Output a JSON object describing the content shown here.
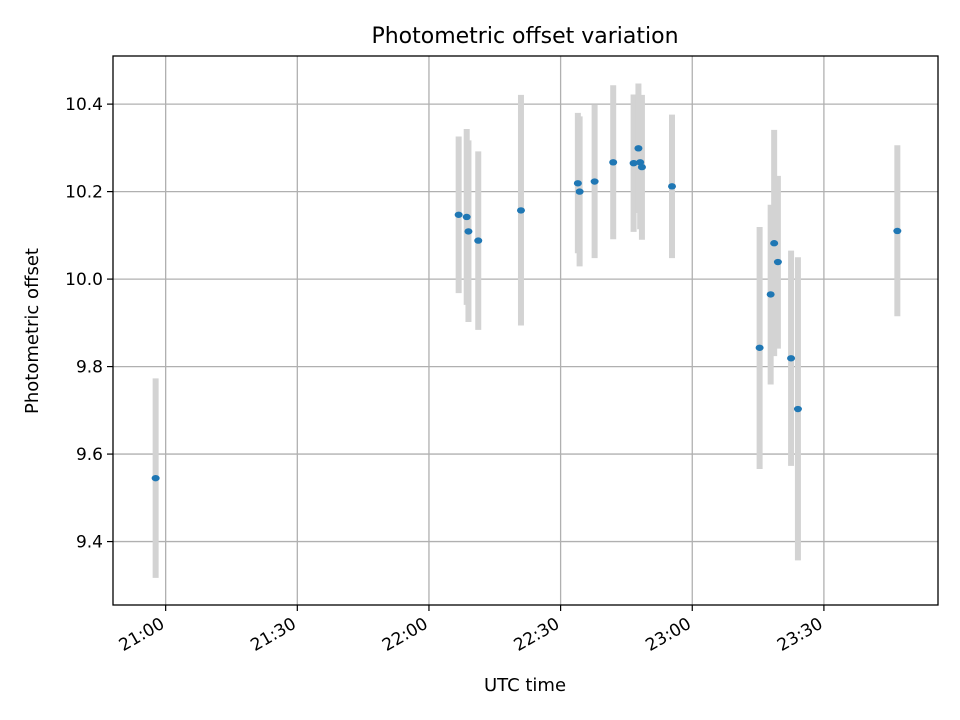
{
  "chart_data": {
    "type": "scatter",
    "title": "Photometric offset variation",
    "xlabel": "UTC time",
    "ylabel": "Photometric offset",
    "x_unit": "time of day (UTC)",
    "xlim": [
      "20:48",
      "23:56"
    ],
    "ylim": [
      9.255,
      10.51
    ],
    "x_ticks": [
      "21:00",
      "21:30",
      "22:00",
      "22:30",
      "23:00",
      "23:30"
    ],
    "y_ticks": [
      9.4,
      9.6,
      9.8,
      10.0,
      10.2,
      10.4
    ],
    "y_tick_labels": [
      "9.4",
      "9.6",
      "9.8",
      "10.0",
      "10.2",
      "10.4"
    ],
    "grid": true,
    "legend": "none",
    "colors": {
      "points": "#1f77b4",
      "error_bars": "#d3d3d3"
    },
    "series": [
      {
        "points": [
          {
            "t": "20:57:43",
            "y": 9.545,
            "lo": 9.317,
            "hi": 9.773
          },
          {
            "t": "22:06:46",
            "y": 10.147,
            "lo": 9.968,
            "hi": 10.326
          },
          {
            "t": "22:08:36",
            "y": 10.142,
            "lo": 9.941,
            "hi": 10.343
          },
          {
            "t": "22:09:00",
            "y": 10.109,
            "lo": 9.902,
            "hi": 10.317
          },
          {
            "t": "22:11:14",
            "y": 10.088,
            "lo": 9.884,
            "hi": 10.292
          },
          {
            "t": "22:20:58",
            "y": 10.157,
            "lo": 9.894,
            "hi": 10.421
          },
          {
            "t": "22:33:56",
            "y": 10.219,
            "lo": 10.059,
            "hi": 10.38
          },
          {
            "t": "22:34:20",
            "y": 10.2,
            "lo": 10.029,
            "hi": 10.372
          },
          {
            "t": "22:37:45",
            "y": 10.223,
            "lo": 10.048,
            "hi": 10.398
          },
          {
            "t": "22:41:59",
            "y": 10.267,
            "lo": 10.091,
            "hi": 10.443
          },
          {
            "t": "22:46:38",
            "y": 10.265,
            "lo": 10.108,
            "hi": 10.422
          },
          {
            "t": "22:47:44",
            "y": 10.299,
            "lo": 10.151,
            "hi": 10.447
          },
          {
            "t": "22:48:08",
            "y": 10.267,
            "lo": 10.114,
            "hi": 10.42
          },
          {
            "t": "22:48:32",
            "y": 10.256,
            "lo": 10.09,
            "hi": 10.421
          },
          {
            "t": "22:55:23",
            "y": 10.212,
            "lo": 10.048,
            "hi": 10.376
          },
          {
            "t": "23:15:21",
            "y": 9.843,
            "lo": 9.566,
            "hi": 10.119
          },
          {
            "t": "23:17:52",
            "y": 9.965,
            "lo": 9.759,
            "hi": 10.17
          },
          {
            "t": "23:18:40",
            "y": 10.082,
            "lo": 9.824,
            "hi": 10.341
          },
          {
            "t": "23:19:31",
            "y": 10.039,
            "lo": 9.841,
            "hi": 10.236
          },
          {
            "t": "23:22:31",
            "y": 9.819,
            "lo": 9.573,
            "hi": 10.065
          },
          {
            "t": "23:24:05",
            "y": 9.703,
            "lo": 9.357,
            "hi": 10.05
          },
          {
            "t": "23:46:44",
            "y": 10.11,
            "lo": 9.915,
            "hi": 10.306
          }
        ]
      }
    ]
  }
}
